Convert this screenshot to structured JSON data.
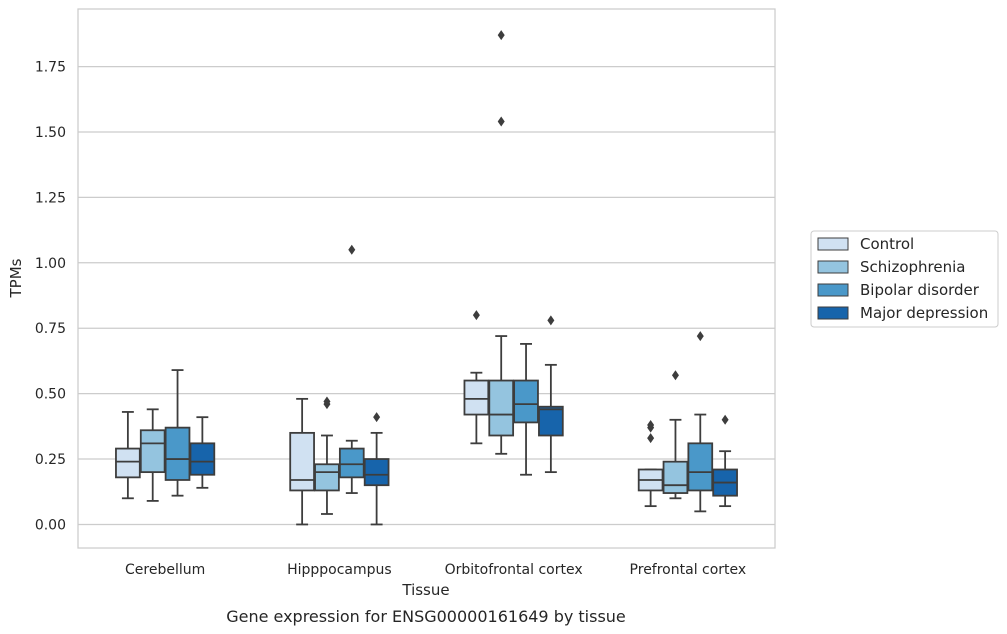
{
  "chart_data": {
    "type": "box",
    "caption": "Gene expression for ENSG00000161649 by tissue",
    "xlabel": "Tissue",
    "ylabel": "TPMs",
    "ylim": [
      -0.09,
      1.97
    ],
    "yticks": [
      0.0,
      0.25,
      0.5,
      0.75,
      1.0,
      1.25,
      1.5,
      1.75
    ],
    "ytick_labels": [
      "0.00",
      "0.25",
      "0.50",
      "0.75",
      "1.00",
      "1.25",
      "1.50",
      "1.75"
    ],
    "grid": "horizontal",
    "legend_placement": "right, outside plot",
    "categories": [
      "Cerebellum",
      "Hipppocampus",
      "Orbitofrontal cortex",
      "Prefrontal cortex"
    ],
    "series": [
      {
        "name": "Control",
        "color": "#d0e1f2",
        "boxes": [
          {
            "min": 0.1,
            "q1": 0.18,
            "median": 0.24,
            "q3": 0.29,
            "max": 0.43,
            "outliers": []
          },
          {
            "min": 0.0,
            "q1": 0.13,
            "median": 0.17,
            "q3": 0.35,
            "max": 0.48,
            "outliers": []
          },
          {
            "min": 0.31,
            "q1": 0.42,
            "median": 0.48,
            "q3": 0.55,
            "max": 0.58,
            "outliers": [
              0.8
            ]
          },
          {
            "min": 0.07,
            "q1": 0.13,
            "median": 0.17,
            "q3": 0.21,
            "max": 0.21,
            "outliers": [
              0.33,
              0.37,
              0.38
            ]
          }
        ]
      },
      {
        "name": "Schizophrenia",
        "color": "#94c4df",
        "boxes": [
          {
            "min": 0.09,
            "q1": 0.2,
            "median": 0.31,
            "q3": 0.36,
            "max": 0.44,
            "outliers": []
          },
          {
            "min": 0.04,
            "q1": 0.13,
            "median": 0.2,
            "q3": 0.23,
            "max": 0.34,
            "outliers": [
              0.46,
              0.47
            ]
          },
          {
            "min": 0.27,
            "q1": 0.34,
            "median": 0.42,
            "q3": 0.55,
            "max": 0.72,
            "outliers": [
              1.54,
              1.87
            ]
          },
          {
            "min": 0.1,
            "q1": 0.12,
            "median": 0.15,
            "q3": 0.24,
            "max": 0.4,
            "outliers": [
              0.57
            ]
          }
        ]
      },
      {
        "name": "Bipolar disorder",
        "color": "#4a98c9",
        "boxes": [
          {
            "min": 0.11,
            "q1": 0.17,
            "median": 0.25,
            "q3": 0.37,
            "max": 0.59,
            "outliers": []
          },
          {
            "min": 0.12,
            "q1": 0.18,
            "median": 0.23,
            "q3": 0.29,
            "max": 0.32,
            "outliers": [
              1.05
            ]
          },
          {
            "min": 0.19,
            "q1": 0.39,
            "median": 0.46,
            "q3": 0.55,
            "max": 0.69,
            "outliers": []
          },
          {
            "min": 0.05,
            "q1": 0.13,
            "median": 0.2,
            "q3": 0.31,
            "max": 0.42,
            "outliers": [
              0.72
            ]
          }
        ]
      },
      {
        "name": "Major depression",
        "color": "#1764ab",
        "boxes": [
          {
            "min": 0.14,
            "q1": 0.19,
            "median": 0.24,
            "q3": 0.31,
            "max": 0.41,
            "outliers": []
          },
          {
            "min": 0.0,
            "q1": 0.15,
            "median": 0.19,
            "q3": 0.25,
            "max": 0.35,
            "outliers": [
              0.41
            ]
          },
          {
            "min": 0.2,
            "q1": 0.34,
            "median": 0.44,
            "q3": 0.45,
            "max": 0.61,
            "outliers": [
              0.78
            ]
          },
          {
            "min": 0.07,
            "q1": 0.11,
            "median": 0.16,
            "q3": 0.21,
            "max": 0.28,
            "outliers": [
              0.4
            ]
          }
        ]
      }
    ]
  }
}
